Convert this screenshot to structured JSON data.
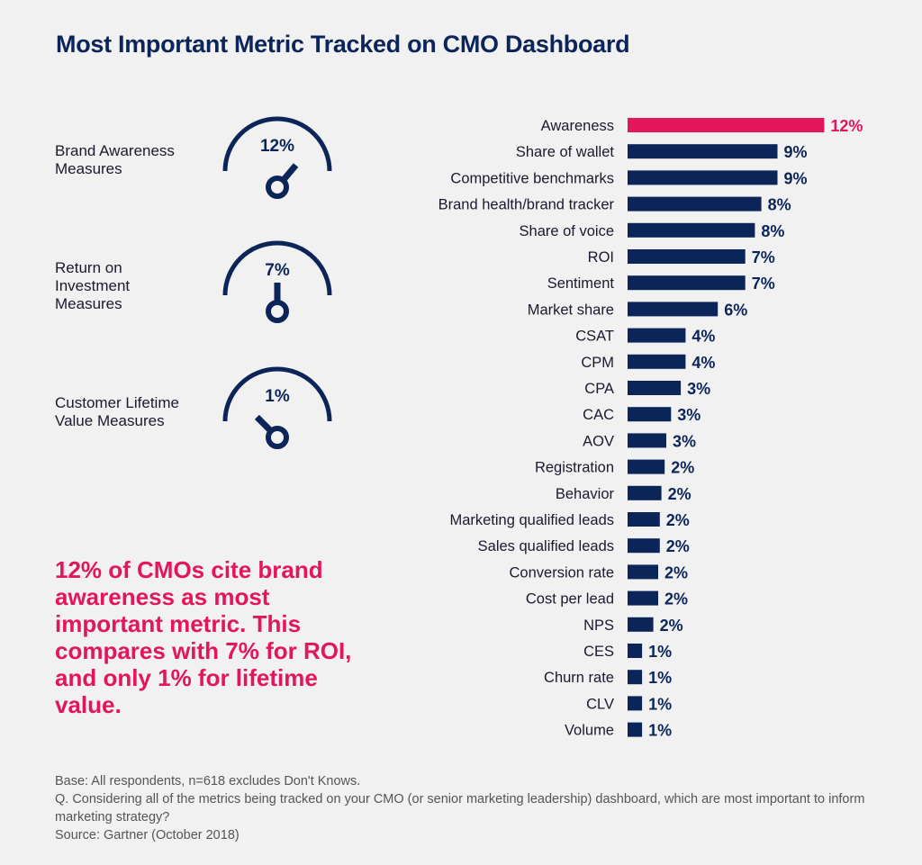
{
  "title": "Most Important Metric Tracked on CMO Dashboard",
  "gauges": [
    {
      "label_line1": "Brand Awareness",
      "label_line2": "Measures",
      "label_line3": "",
      "value_label": "12%",
      "value": 12
    },
    {
      "label_line1": "Return on",
      "label_line2": "Investment",
      "label_line3": "Measures",
      "value_label": "7%",
      "value": 7
    },
    {
      "label_line1": "Customer Lifetime",
      "label_line2": "Value Measures",
      "label_line3": "",
      "value_label": "1%",
      "value": 1
    }
  ],
  "highlight_text": "12% of CMOs cite brand awareness as most important metric. This compares with 7% for ROI, and only 1%  for lifetime value.",
  "footnote": {
    "base": "Base:  All respondents, n=618 excludes Don't Knows.",
    "question": "Q. Considering all of the metrics being tracked on your CMO (or senior marketing leadership) dashboard, which are most important to inform marketing strategy?",
    "source": "Source: Gartner (October 2018)"
  },
  "colors": {
    "navy": "#0b2559",
    "accent": "#e3155b",
    "background": "#f1f1f1"
  },
  "chart_data": {
    "type": "bar",
    "orientation": "horizontal",
    "title": "Most Important Metric Tracked on CMO Dashboard",
    "categories": [
      "Awareness",
      "Share of wallet",
      "Competitive benchmarks",
      "Brand health/brand tracker",
      "Share of voice",
      "ROI",
      "Sentiment",
      "Market share",
      "CSAT",
      "CPM",
      "CPA",
      "CAC",
      "AOV",
      "Registration",
      "Behavior",
      "Marketing qualified leads",
      "Sales qualified leads",
      "Conversion rate",
      "Cost per lead",
      "NPS",
      "CES",
      "Churn rate",
      "CLV",
      "Volume"
    ],
    "values": [
      12.0,
      9.0,
      9.0,
      8.0,
      8.0,
      7.0,
      7.0,
      6.0,
      4.0,
      4.0,
      3.0,
      3.0,
      3.0,
      2.0,
      2.0,
      2.0,
      2.0,
      2.0,
      2.0,
      2.0,
      1.0,
      1.0,
      1.0,
      1.0
    ],
    "bar_lengths": [
      12.2,
      9.3,
      9.3,
      8.3,
      7.9,
      7.3,
      7.3,
      5.6,
      3.6,
      3.6,
      3.3,
      2.7,
      2.4,
      2.3,
      2.1,
      2.0,
      2.0,
      1.9,
      1.9,
      1.6,
      0.9,
      0.9,
      0.9,
      0.9
    ],
    "value_labels": [
      "12%",
      "9%",
      "9%",
      "8%",
      "8%",
      "7%",
      "7%",
      "6%",
      "4%",
      "4%",
      "3%",
      "3%",
      "3%",
      "2%",
      "2%",
      "2%",
      "2%",
      "2%",
      "2%",
      "2%",
      "1%",
      "1%",
      "1%",
      "1%"
    ],
    "highlight_index": 0,
    "unit": "%",
    "grid": false,
    "legend": "none"
  }
}
